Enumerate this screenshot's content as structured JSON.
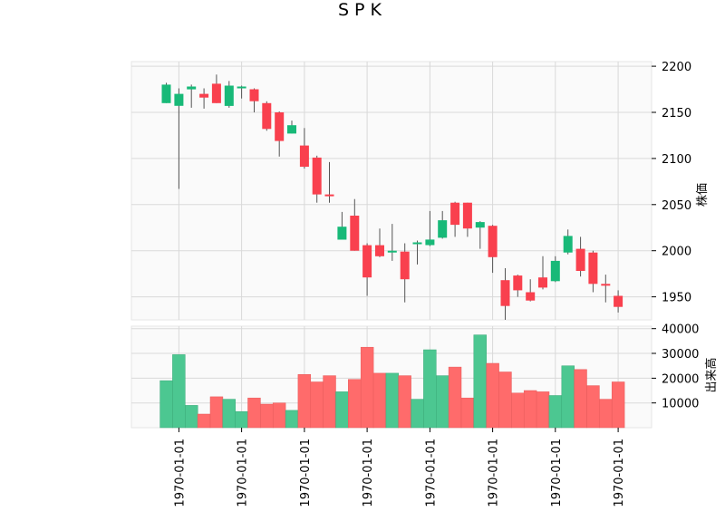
{
  "chart_data": {
    "type": "candlestick",
    "title": "SPK",
    "colors": {
      "up": "#18b978",
      "down": "#f9404e",
      "up_volume": "#4cc791",
      "down_volume": "#ff6b6b",
      "grid": "#d9d9d9",
      "background": "#fafafa"
    },
    "grid": true,
    "price_panel": {
      "ylabel": "株価",
      "ylim": [
        1925,
        2205
      ],
      "yticks": [
        1950,
        2000,
        2050,
        2100,
        2150,
        2200
      ]
    },
    "volume_panel": {
      "ylabel": "出来高",
      "ylim": [
        0,
        41000
      ],
      "yticks": [
        10000,
        20000,
        30000,
        40000
      ]
    },
    "x_tick_positions": [
      1,
      6,
      11,
      16,
      21,
      26,
      31,
      36
    ],
    "x_tick_labels": [
      "1970-01-01",
      "1970-01-01",
      "1970-01-01",
      "1970-01-01",
      "1970-01-01",
      "1970-01-01",
      "1970-01-01",
      "1970-01-01"
    ],
    "candles": [
      {
        "open": 2160,
        "high": 2182,
        "low": 2160,
        "close": 2180,
        "volume": 19000
      },
      {
        "open": 2157,
        "high": 2176,
        "low": 2067,
        "close": 2170,
        "volume": 29500
      },
      {
        "open": 2175,
        "high": 2180,
        "low": 2155,
        "close": 2178,
        "volume": 9000
      },
      {
        "open": 2170,
        "high": 2176,
        "low": 2154,
        "close": 2166,
        "volume": 5500
      },
      {
        "open": 2181,
        "high": 2191,
        "low": 2160,
        "close": 2160,
        "volume": 12500
      },
      {
        "open": 2157,
        "high": 2184,
        "low": 2155,
        "close": 2179,
        "volume": 11500
      },
      {
        "open": 2177,
        "high": 2179,
        "low": 2165,
        "close": 2178,
        "volume": 6500
      },
      {
        "open": 2175,
        "high": 2176,
        "low": 2150,
        "close": 2162,
        "volume": 12000
      },
      {
        "open": 2160,
        "high": 2162,
        "low": 2130,
        "close": 2132,
        "volume": 9500
      },
      {
        "open": 2150,
        "high": 2151,
        "low": 2102,
        "close": 2119,
        "volume": 10000
      },
      {
        "open": 2127,
        "high": 2141,
        "low": 2127,
        "close": 2136,
        "volume": 7000
      },
      {
        "open": 2114,
        "high": 2133,
        "low": 2089,
        "close": 2091,
        "volume": 21500
      },
      {
        "open": 2101,
        "high": 2103,
        "low": 2052,
        "close": 2061,
        "volume": 18500
      },
      {
        "open": 2061,
        "high": 2096,
        "low": 2052,
        "close": 2059,
        "volume": 21000
      },
      {
        "open": 2012,
        "high": 2042,
        "low": 2012,
        "close": 2026,
        "volume": 14500
      },
      {
        "open": 2038,
        "high": 2056,
        "low": 2000,
        "close": 2000,
        "volume": 19500
      },
      {
        "open": 2006,
        "high": 2008,
        "low": 1951,
        "close": 1971,
        "volume": 32500
      },
      {
        "open": 2006,
        "high": 2024,
        "low": 1993,
        "close": 1994,
        "volume": 22000
      },
      {
        "open": 1999,
        "high": 2029,
        "low": 1989,
        "close": 2000,
        "volume": 22000
      },
      {
        "open": 1999,
        "high": 2008,
        "low": 1944,
        "close": 1969,
        "volume": 21000
      },
      {
        "open": 2007,
        "high": 2011,
        "low": 1985,
        "close": 2009,
        "volume": 11500
      },
      {
        "open": 2006,
        "high": 2043,
        "low": 2005,
        "close": 2012,
        "volume": 31500
      },
      {
        "open": 2014,
        "high": 2043,
        "low": 2013,
        "close": 2033,
        "volume": 21000
      },
      {
        "open": 2052,
        "high": 2053,
        "low": 2015,
        "close": 2028,
        "volume": 24500
      },
      {
        "open": 2052,
        "high": 2052,
        "low": 2015,
        "close": 2024,
        "volume": 12000
      },
      {
        "open": 2025,
        "high": 2032,
        "low": 2002,
        "close": 2031,
        "volume": 37500
      },
      {
        "open": 2027,
        "high": 2028,
        "low": 1976,
        "close": 1993,
        "volume": 26000
      },
      {
        "open": 1968,
        "high": 1981,
        "low": 1925,
        "close": 1940,
        "volume": 22500
      },
      {
        "open": 1973,
        "high": 1974,
        "low": 1950,
        "close": 1957,
        "volume": 14000
      },
      {
        "open": 1955,
        "high": 1969,
        "low": 1945,
        "close": 1946,
        "volume": 15000
      },
      {
        "open": 1971,
        "high": 1994,
        "low": 1958,
        "close": 1960,
        "volume": 14500
      },
      {
        "open": 1967,
        "high": 1994,
        "low": 1966,
        "close": 1989,
        "volume": 13000
      },
      {
        "open": 1998,
        "high": 2023,
        "low": 1996,
        "close": 2016,
        "volume": 25000
      },
      {
        "open": 2002,
        "high": 2015,
        "low": 1972,
        "close": 1978,
        "volume": 23500
      },
      {
        "open": 1998,
        "high": 2000,
        "low": 1955,
        "close": 1964,
        "volume": 17000
      },
      {
        "open": 1964,
        "high": 1974,
        "low": 1944,
        "close": 1962,
        "volume": 11500
      },
      {
        "open": 1951,
        "high": 1957,
        "low": 1933,
        "close": 1939,
        "volume": 18500
      }
    ]
  }
}
